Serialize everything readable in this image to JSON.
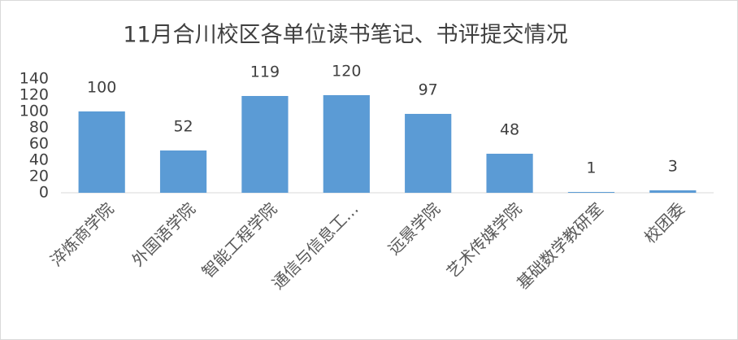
{
  "chart_data": {
    "type": "bar",
    "title": "11月合川校区各单位读书笔记、书评提交情况",
    "categories": [
      "淬炼商学院",
      "外国语学院",
      "智能工程学院",
      "通信与信息工…",
      "远景学院",
      "艺术传媒学院",
      "基础数学教研室",
      "校团委"
    ],
    "values": [
      100,
      52,
      119,
      120,
      97,
      48,
      1,
      3
    ],
    "color": "#5b9bd5",
    "ylim": [
      0,
      140
    ],
    "yticks": [
      0,
      20,
      40,
      60,
      80,
      100,
      120,
      140
    ],
    "grid": false
  }
}
